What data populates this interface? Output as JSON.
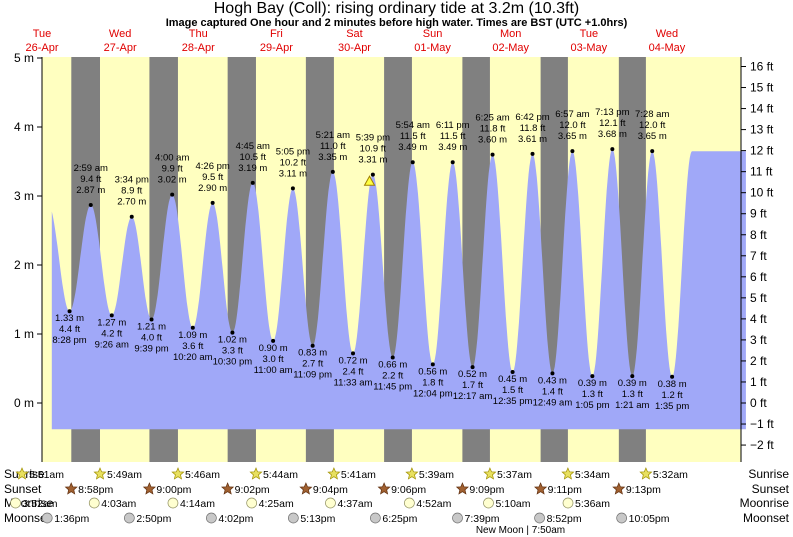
{
  "title": "Hogh Bay (Coll): rising  ordinary tide at 3.2m (10.3ft)",
  "subtitle": "Image captured One hour and 2 minutes before high water. Times are BST (UTC +1.0hrs)",
  "colors": {
    "day": "#ffffc0",
    "night": "#808080",
    "tide": "#a0a8f8",
    "day_label": "#e00000",
    "marker": "#000000",
    "sun_icon": "#e8e060",
    "sunset_icon": "#a06030",
    "moonrise_icon": "#ffffd0",
    "moonset_icon": "#c8c8c8"
  },
  "chart_data": {
    "type": "area",
    "ylabel_left": "m",
    "ylabel_right": "ft",
    "ylim_m": [
      -0.66,
      5.1
    ],
    "yticks_m": [
      "5 m",
      "4 m",
      "3 m",
      "2 m",
      "1 m",
      "0 m"
    ],
    "yticks_ft": [
      "16 ft",
      "15 ft",
      "14 ft",
      "13 ft",
      "12 ft",
      "11 ft",
      "10 ft",
      "9 ft",
      "8 ft",
      "7 ft",
      "6 ft",
      "5 ft",
      "4 ft",
      "3 ft",
      "2 ft",
      "1 ft",
      "0 ft",
      "−1 ft",
      "−2 ft"
    ],
    "days": [
      {
        "name": "Tue",
        "date": "26-Apr"
      },
      {
        "name": "Wed",
        "date": "27-Apr"
      },
      {
        "name": "Thu",
        "date": "28-Apr"
      },
      {
        "name": "Fri",
        "date": "29-Apr"
      },
      {
        "name": "Sat",
        "date": "30-Apr"
      },
      {
        "name": "Sun",
        "date": "01-May"
      },
      {
        "name": "Mon",
        "date": "02-May"
      },
      {
        "name": "Tue",
        "date": "03-May"
      },
      {
        "name": "Wed",
        "date": "04-May"
      }
    ],
    "x_start_hours": 15,
    "x_end_hours": 228.25,
    "tide_series": [
      {
        "type": "low",
        "hours": 20.47,
        "time": "8:28 pm",
        "m": 1.33,
        "m_label": "1.33 m",
        "ft_label": "4.4 ft"
      },
      {
        "type": "high",
        "hours": 26.98,
        "time": "2:59 am",
        "m": 2.87,
        "m_label": "2.87 m",
        "ft_label": "9.4 ft"
      },
      {
        "type": "low",
        "hours": 33.43,
        "time": "9:26 am",
        "m": 1.27,
        "m_label": "1.27 m",
        "ft_label": "4.2 ft"
      },
      {
        "type": "high",
        "hours": 39.57,
        "time": "3:34 pm",
        "m": 2.7,
        "m_label": "2.70 m",
        "ft_label": "8.9 ft"
      },
      {
        "type": "low",
        "hours": 45.65,
        "time": "9:39 pm",
        "m": 1.21,
        "m_label": "1.21 m",
        "ft_label": "4.0 ft"
      },
      {
        "type": "high",
        "hours": 52.0,
        "time": "4:00 am",
        "m": 3.02,
        "m_label": "3.02 m",
        "ft_label": "9.9 ft"
      },
      {
        "type": "low",
        "hours": 58.33,
        "time": "10:20 am",
        "m": 1.09,
        "m_label": "1.09 m",
        "ft_label": "3.6 ft"
      },
      {
        "type": "high",
        "hours": 64.43,
        "time": "4:26 pm",
        "m": 2.9,
        "m_label": "2.90 m",
        "ft_label": "9.5 ft"
      },
      {
        "type": "low",
        "hours": 70.5,
        "time": "10:30 pm",
        "m": 1.02,
        "m_label": "1.02 m",
        "ft_label": "3.3 ft"
      },
      {
        "type": "high",
        "hours": 76.75,
        "time": "4:45 am",
        "m": 3.19,
        "m_label": "3.19 m",
        "ft_label": "10.5 ft"
      },
      {
        "type": "low",
        "hours": 83.0,
        "time": "11:00 am",
        "m": 0.9,
        "m_label": "0.90 m",
        "ft_label": "3.0 ft"
      },
      {
        "type": "high",
        "hours": 89.08,
        "time": "5:05 pm",
        "m": 3.11,
        "m_label": "3.11 m",
        "ft_label": "10.2 ft"
      },
      {
        "type": "low",
        "hours": 95.15,
        "time": "11:09 pm",
        "m": 0.83,
        "m_label": "0.83 m",
        "ft_label": "2.7 ft"
      },
      {
        "type": "high",
        "hours": 101.35,
        "time": "5:21 am",
        "m": 3.35,
        "m_label": "3.35 m",
        "ft_label": "11.0 ft"
      },
      {
        "type": "low",
        "hours": 107.55,
        "time": "11:33 am",
        "m": 0.72,
        "m_label": "0.72 m",
        "ft_label": "2.4 ft"
      },
      {
        "type": "high",
        "hours": 113.65,
        "time": "5:39 pm",
        "m": 3.31,
        "m_label": "3.31 m",
        "ft_label": "10.9 ft"
      },
      {
        "type": "low",
        "hours": 119.75,
        "time": "11:45 pm",
        "m": 0.66,
        "m_label": "0.66 m",
        "ft_label": "2.2 ft"
      },
      {
        "type": "high",
        "hours": 125.9,
        "time": "5:54 am",
        "m": 3.49,
        "m_label": "3.49 m",
        "ft_label": "11.5 ft"
      },
      {
        "type": "low",
        "hours": 132.07,
        "time": "12:04 pm",
        "m": 0.56,
        "m_label": "0.56 m",
        "ft_label": "1.8 ft"
      },
      {
        "type": "high",
        "hours": 138.18,
        "time": "6:11 pm",
        "m": 3.49,
        "m_label": "3.49 m",
        "ft_label": "11.5 ft"
      },
      {
        "type": "low",
        "hours": 144.28,
        "time": "12:17 am",
        "m": 0.52,
        "m_label": "0.52 m",
        "ft_label": "1.7 ft"
      },
      {
        "type": "high",
        "hours": 150.42,
        "time": "6:25 am",
        "m": 3.6,
        "m_label": "3.60 m",
        "ft_label": "11.8 ft"
      },
      {
        "type": "low",
        "hours": 156.58,
        "time": "12:35 pm",
        "m": 0.45,
        "m_label": "0.45 m",
        "ft_label": "1.5 ft"
      },
      {
        "type": "high",
        "hours": 162.7,
        "time": "6:42 pm",
        "m": 3.61,
        "m_label": "3.61 m",
        "ft_label": "11.8 ft"
      },
      {
        "type": "low",
        "hours": 168.82,
        "time": "12:49 am",
        "m": 0.43,
        "m_label": "0.43 m",
        "ft_label": "1.4 ft"
      },
      {
        "type": "high",
        "hours": 174.95,
        "time": "6:57 am",
        "m": 3.65,
        "m_label": "3.65 m",
        "ft_label": "12.0 ft"
      },
      {
        "type": "low",
        "hours": 181.08,
        "time": "1:05 pm",
        "m": 0.39,
        "m_label": "0.39 m",
        "ft_label": "1.3 ft"
      },
      {
        "type": "high",
        "hours": 187.22,
        "time": "7:13 pm",
        "m": 3.68,
        "m_label": "3.68 m",
        "ft_label": "12.1 ft"
      },
      {
        "type": "low",
        "hours": 193.35,
        "time": "1:21 am",
        "m": 0.39,
        "m_label": "0.39 m",
        "ft_label": "1.3 ft"
      },
      {
        "type": "high",
        "hours": 199.47,
        "time": "7:28 am",
        "m": 3.65,
        "m_label": "3.65 m",
        "ft_label": "12.0 ft"
      },
      {
        "type": "low",
        "hours": 205.58,
        "time": "1:35 pm",
        "m": 0.38,
        "m_label": "0.38 m",
        "ft_label": "1.2 ft"
      }
    ],
    "current": {
      "hours": 112.62,
      "m": 3.2,
      "label": "rising ordinary tide at 3.2m (10.3ft)"
    },
    "sunrise": [
      "5:51am",
      "5:49am",
      "5:46am",
      "5:44am",
      "5:41am",
      "5:39am",
      "5:37am",
      "5:34am",
      "5:32am"
    ],
    "sunset": [
      "8:58pm",
      "9:00pm",
      "9:02pm",
      "9:04pm",
      "9:06pm",
      "9:09pm",
      "9:11pm",
      "9:13pm"
    ],
    "moonrise": [
      "3:52am",
      "4:03am",
      "4:14am",
      "4:25am",
      "4:37am",
      "4:52am",
      "5:10am",
      "5:36am"
    ],
    "moonset": [
      "1:36pm",
      "2:50pm",
      "4:02pm",
      "5:13pm",
      "6:25pm",
      "7:39pm",
      "8:52pm",
      "10:05pm"
    ],
    "row_labels": {
      "sunrise": "Sunrise",
      "sunset": "Sunset",
      "moonrise": "Moonrise",
      "moonset": "Moonset"
    },
    "moon_phase": "New Moon | 7:50am"
  }
}
